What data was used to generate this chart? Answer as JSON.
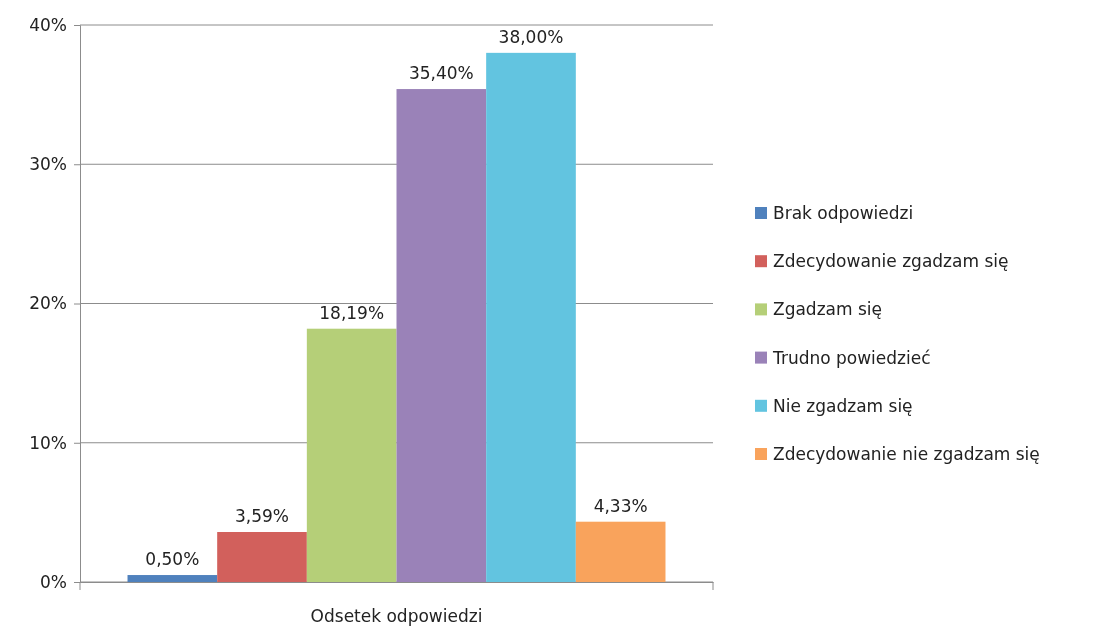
{
  "chart_data": {
    "type": "bar",
    "categories": [
      "Odsetek odpowiedzi"
    ],
    "ylim": [
      0,
      40
    ],
    "yticks": [
      {
        "value": 0,
        "label": "0%"
      },
      {
        "value": 10,
        "label": "10%"
      },
      {
        "value": 20,
        "label": "20%"
      },
      {
        "value": 30,
        "label": "30%"
      },
      {
        "value": 40,
        "label": "40%"
      }
    ],
    "grid": "y",
    "legend": "right",
    "series": [
      {
        "name": "Brak odpowiedzi",
        "color": "#4f81bd",
        "values": [
          0.5
        ],
        "value_labels": [
          "0,50%"
        ]
      },
      {
        "name": "Zdecydowanie zgadzam się",
        "color": "#d2605c",
        "values": [
          3.59
        ],
        "value_labels": [
          "3,59%"
        ]
      },
      {
        "name": "Zgadzam się",
        "color": "#b5cf78",
        "values": [
          18.19
        ],
        "value_labels": [
          "18,19%"
        ]
      },
      {
        "name": "Trudno powiedzieć",
        "color": "#9a82b8",
        "values": [
          35.4
        ],
        "value_labels": [
          "35,40%"
        ]
      },
      {
        "name": "Nie zgadzam się",
        "color": "#62c4e0",
        "values": [
          38
        ],
        "value_labels": [
          "38,00%"
        ]
      },
      {
        "name": "Zdecydowanie nie zgadzam się",
        "color": "#f9a35c",
        "values": [
          4.33
        ],
        "value_labels": [
          "4,33%"
        ]
      }
    ]
  }
}
